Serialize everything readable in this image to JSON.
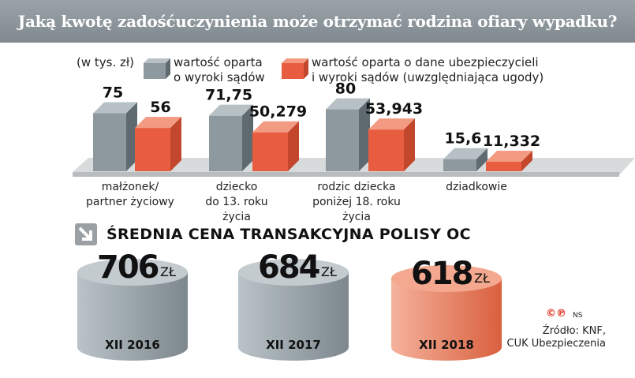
{
  "title": "Jaką kwotę zadośćuczynienia może otrzymać rodzina ofiary wypadku?",
  "chart_data": [
    {
      "type": "bar",
      "unit": "(w tys. zł)",
      "categories": [
        "małżonek/\npartner życiowy",
        "dziecko\ndo 13. roku\nżycia",
        "rodzic dziecka\nponiżej 18. roku\nżycia",
        "dziadkowie"
      ],
      "series": [
        {
          "name": "wartość oparta\no wyroki sądów",
          "color": "#8e999f",
          "values": [
            75,
            71.75,
            80,
            15.6
          ],
          "labels": [
            "75",
            "71,75",
            "80",
            "15,6"
          ]
        },
        {
          "name": "wartość oparta o dane ubezpieczycieli\ni wyroki sądów (uwzględniająca ugody)",
          "color": "#e85d3f",
          "values": [
            56,
            50.279,
            53.943,
            11.332
          ],
          "labels": [
            "56",
            "50,279",
            "53,943",
            "11,332"
          ]
        }
      ]
    },
    {
      "type": "bar",
      "title": "ŚREDNIA CENA TRANSAKCYJNA POLISY OC",
      "unit": "ZŁ",
      "categories": [
        "XII 2016",
        "XII 2017",
        "XII 2018"
      ],
      "values": [
        706,
        684,
        618
      ],
      "labels": [
        "706",
        "684",
        "618"
      ],
      "colors": [
        "#9aa5ab",
        "#9aa5ab",
        "#ec7a5d"
      ]
    }
  ],
  "footer": {
    "copyright": "©℗",
    "author": "NS",
    "source_line1": "Źródło: KNF,",
    "source_line2": "CUK Ubezpieczenia"
  },
  "icons": {
    "sub_icon": "arrow-down-right-icon"
  }
}
